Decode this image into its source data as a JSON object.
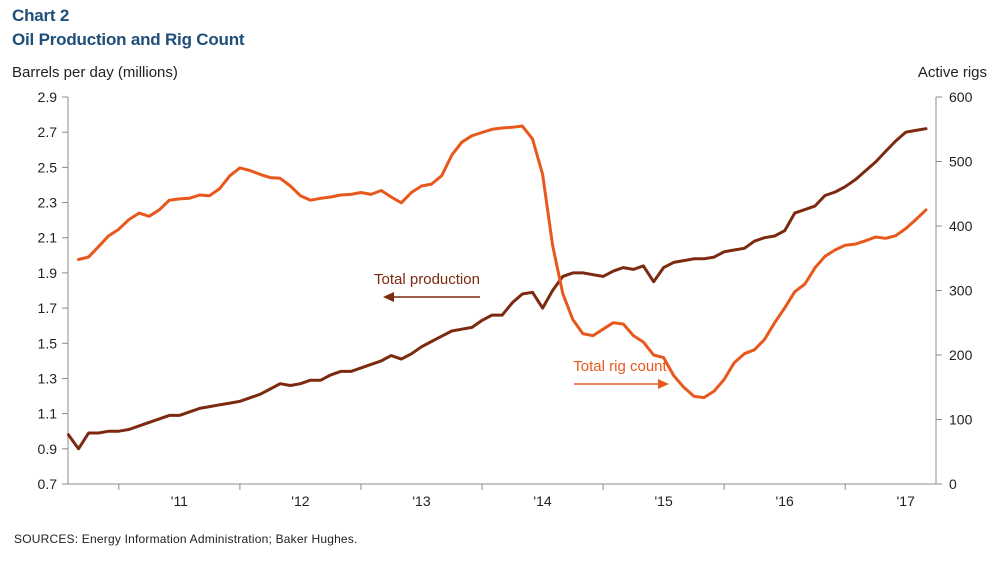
{
  "chart_data": {
    "type": "line",
    "title": "Chart 2",
    "subtitle": "Oil Production and Rig Count",
    "ylabel_left": "Barrels per day (millions)",
    "ylabel_right": "Active rigs",
    "source": "SOURCES: Energy Information  Administration; Baker Hughes.",
    "ylim_left": [
      0.7,
      2.9
    ],
    "ylim_right": [
      0,
      600
    ],
    "yticks_left": [
      "0.7",
      "0.9",
      "1.1",
      "1.3",
      "1.5",
      "1.7",
      "1.9",
      "2.1",
      "2.3",
      "2.5",
      "2.7",
      "2.9"
    ],
    "yticks_right": [
      "0",
      "100",
      "200",
      "300",
      "400",
      "500",
      "600"
    ],
    "xticks": [
      "'11",
      "'12",
      "'13",
      "'14",
      "'15",
      "'16",
      "'17"
    ],
    "xlim": [
      2010.58,
      2017.75
    ],
    "grid": false,
    "colors": {
      "production": "#7b2a10",
      "rigs": "#e8581c",
      "axis": "#8c8c8c"
    },
    "series": [
      {
        "name": "Total production",
        "axis": "left",
        "color": "#7b2a10",
        "x": [
          2010.583,
          2010.667,
          2010.75,
          2010.833,
          2010.917,
          2011.0,
          2011.083,
          2011.167,
          2011.25,
          2011.333,
          2011.417,
          2011.5,
          2011.583,
          2011.667,
          2011.75,
          2011.833,
          2011.917,
          2012.0,
          2012.083,
          2012.167,
          2012.25,
          2012.333,
          2012.417,
          2012.5,
          2012.583,
          2012.667,
          2012.75,
          2012.833,
          2012.917,
          2013.0,
          2013.083,
          2013.167,
          2013.25,
          2013.333,
          2013.417,
          2013.5,
          2013.583,
          2013.667,
          2013.75,
          2013.833,
          2013.917,
          2014.0,
          2014.083,
          2014.167,
          2014.25,
          2014.333,
          2014.417,
          2014.5,
          2014.583,
          2014.667,
          2014.75,
          2014.833,
          2014.917,
          2015.0,
          2015.083,
          2015.167,
          2015.25,
          2015.333,
          2015.417,
          2015.5,
          2015.583,
          2015.667,
          2015.75,
          2015.833,
          2015.917,
          2016.0,
          2016.083,
          2016.167,
          2016.25,
          2016.333,
          2016.417,
          2016.5,
          2016.583,
          2016.667,
          2016.75,
          2016.833,
          2016.917,
          2017.0,
          2017.083,
          2017.167,
          2017.25,
          2017.333,
          2017.417,
          2017.5,
          2017.583,
          2017.667
        ],
        "values": [
          0.98,
          0.9,
          0.99,
          0.99,
          1.0,
          1.0,
          1.01,
          1.03,
          1.05,
          1.07,
          1.09,
          1.09,
          1.11,
          1.13,
          1.14,
          1.15,
          1.16,
          1.17,
          1.19,
          1.21,
          1.24,
          1.27,
          1.26,
          1.27,
          1.29,
          1.29,
          1.32,
          1.34,
          1.34,
          1.36,
          1.38,
          1.4,
          1.43,
          1.41,
          1.44,
          1.48,
          1.51,
          1.54,
          1.57,
          1.58,
          1.59,
          1.63,
          1.66,
          1.66,
          1.73,
          1.78,
          1.79,
          1.7,
          1.8,
          1.88,
          1.9,
          1.9,
          1.89,
          1.88,
          1.91,
          1.93,
          1.92,
          1.94,
          1.85,
          1.93,
          1.96,
          1.97,
          1.98,
          1.98,
          1.99,
          2.02,
          2.03,
          2.04,
          2.08,
          2.1,
          2.11,
          2.14,
          2.24,
          2.26,
          2.28,
          2.34,
          2.36,
          2.39,
          2.43,
          2.48,
          2.53,
          2.59,
          2.65,
          2.7,
          2.71,
          2.72
        ]
      },
      {
        "name": "Total rig count",
        "axis": "right",
        "color": "#e8581c",
        "x": [
          2010.667,
          2010.75,
          2010.833,
          2010.917,
          2011.0,
          2011.083,
          2011.167,
          2011.25,
          2011.333,
          2011.417,
          2011.5,
          2011.583,
          2011.667,
          2011.75,
          2011.833,
          2011.917,
          2012.0,
          2012.083,
          2012.167,
          2012.25,
          2012.333,
          2012.417,
          2012.5,
          2012.583,
          2012.667,
          2012.75,
          2012.833,
          2012.917,
          2013.0,
          2013.083,
          2013.167,
          2013.25,
          2013.333,
          2013.417,
          2013.5,
          2013.583,
          2013.667,
          2013.75,
          2013.833,
          2013.917,
          2014.0,
          2014.083,
          2014.167,
          2014.25,
          2014.333,
          2014.417,
          2014.5,
          2014.583,
          2014.667,
          2014.75,
          2014.833,
          2014.917,
          2015.0,
          2015.083,
          2015.167,
          2015.25,
          2015.333,
          2015.417,
          2015.5,
          2015.583,
          2015.667,
          2015.75,
          2015.833,
          2015.917,
          2016.0,
          2016.083,
          2016.167,
          2016.25,
          2016.333,
          2016.417,
          2016.5,
          2016.583,
          2016.667,
          2016.75,
          2016.833,
          2016.917,
          2017.0,
          2017.083,
          2017.167,
          2017.25,
          2017.333,
          2017.417,
          2017.5,
          2017.583,
          2017.667
        ],
        "values": [
          348,
          352,
          368,
          385,
          395,
          410,
          420,
          415,
          425,
          440,
          442,
          443,
          448,
          447,
          458,
          478,
          490,
          486,
          480,
          475,
          474,
          462,
          447,
          440,
          443,
          445,
          448,
          449,
          452,
          449,
          455,
          445,
          436,
          452,
          462,
          465,
          478,
          510,
          530,
          540,
          545,
          550,
          552,
          553,
          555,
          535,
          480,
          370,
          295,
          255,
          233,
          230,
          240,
          250,
          248,
          230,
          220,
          200,
          196,
          168,
          150,
          136,
          134,
          144,
          162,
          188,
          202,
          208,
          224,
          250,
          273,
          298,
          310,
          335,
          353,
          363,
          370,
          372,
          377,
          383,
          381,
          385,
          396,
          410,
          425
        ]
      }
    ],
    "annotations": [
      {
        "text": "Total production",
        "series": "Total production",
        "arrow": "left"
      },
      {
        "text": "Total rig count",
        "series": "Total rig count",
        "arrow": "right"
      }
    ]
  }
}
